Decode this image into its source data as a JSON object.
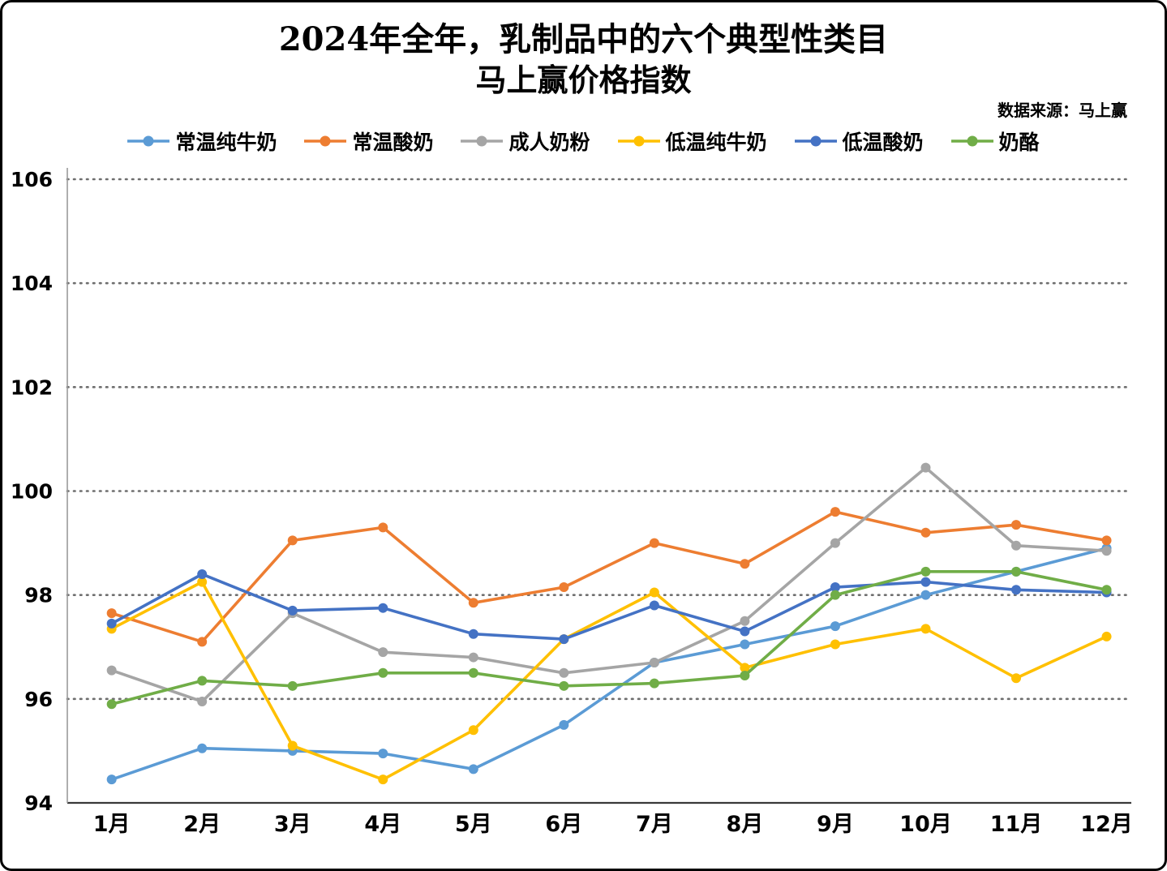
{
  "header": {
    "title_line1": "2024年全年，乳制品中的六个典型性类目",
    "title_line2": "马上赢价格指数",
    "source": "数据来源：马上赢"
  },
  "chart_data": {
    "type": "line",
    "title": "2024年全年，乳制品中的六个典型性类目 马上赢价格指数",
    "xlabel": "",
    "ylabel": "",
    "categories": [
      "1月",
      "2月",
      "3月",
      "4月",
      "5月",
      "6月",
      "7月",
      "8月",
      "9月",
      "10月",
      "11月",
      "12月"
    ],
    "ylim": [
      94,
      106
    ],
    "yticks": [
      94,
      96,
      98,
      100,
      102,
      104,
      106
    ],
    "grid": "horizontal-dotted",
    "legend_position": "top",
    "marker": "circle",
    "series": [
      {
        "name": "常温纯牛奶",
        "color": "#5B9BD5",
        "values": [
          94.45,
          95.05,
          95.0,
          94.95,
          94.65,
          95.5,
          96.7,
          97.05,
          97.4,
          98.0,
          98.45,
          98.9
        ]
      },
      {
        "name": "常温酸奶",
        "color": "#ED7D31",
        "values": [
          97.65,
          97.1,
          99.05,
          99.3,
          97.85,
          98.15,
          99.0,
          98.6,
          99.6,
          99.2,
          99.35,
          99.05
        ]
      },
      {
        "name": "成人奶粉",
        "color": "#A5A5A5",
        "values": [
          96.55,
          95.95,
          97.65,
          96.9,
          96.8,
          96.5,
          96.7,
          97.5,
          99.0,
          100.45,
          98.95,
          98.85
        ]
      },
      {
        "name": "低温纯牛奶",
        "color": "#FFC000",
        "values": [
          97.35,
          98.25,
          95.1,
          94.45,
          95.4,
          97.15,
          98.05,
          96.6,
          97.05,
          97.35,
          96.4,
          97.2
        ]
      },
      {
        "name": "低温酸奶",
        "color": "#4472C4",
        "values": [
          97.45,
          98.4,
          97.7,
          97.75,
          97.25,
          97.15,
          97.8,
          97.3,
          98.15,
          98.25,
          98.1,
          98.05
        ]
      },
      {
        "name": "奶酪",
        "color": "#70AD47",
        "values": [
          95.9,
          96.35,
          96.25,
          96.5,
          96.5,
          96.25,
          96.3,
          96.45,
          98.0,
          98.45,
          98.45,
          98.1
        ]
      }
    ]
  }
}
